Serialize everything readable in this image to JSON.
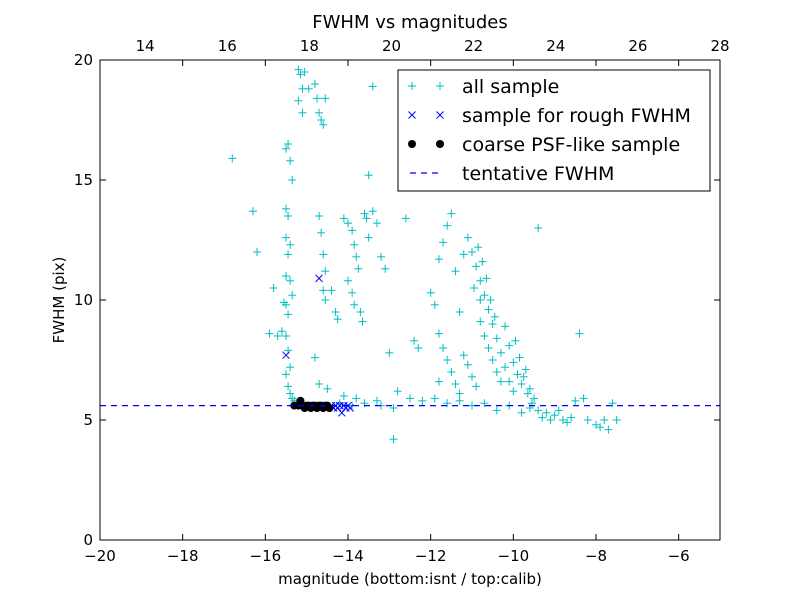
{
  "chart_data": {
    "type": "scatter",
    "title": "FWHM vs magnitudes",
    "xlabel": "magnitude (bottom:isnt / top:calib)",
    "ylabel": "FWHM (pix)",
    "xlim": [
      -20,
      -5
    ],
    "ylim": [
      0,
      20
    ],
    "xticks": [
      -20,
      -18,
      -16,
      -14,
      -12,
      -10,
      -8,
      -6
    ],
    "yticks": [
      0,
      5,
      10,
      15,
      20
    ],
    "top_xlim": [
      12.9,
      28
    ],
    "top_xticks": [
      14,
      16,
      18,
      20,
      22,
      24,
      26,
      28
    ],
    "legend_position": "top-right",
    "tentative_fwhm": 5.6,
    "series": [
      {
        "name": "all sample",
        "marker": "plus",
        "color": "#00bfbf",
        "points": [
          [
            -16.8,
            15.9
          ],
          [
            -16.3,
            13.7
          ],
          [
            -16.2,
            12.0
          ],
          [
            -15.8,
            10.5
          ],
          [
            -15.9,
            8.6
          ],
          [
            -15.7,
            8.5
          ],
          [
            -15.6,
            8.7
          ],
          [
            -15.55,
            9.9
          ],
          [
            -15.5,
            16.3
          ],
          [
            -15.45,
            16.5
          ],
          [
            -15.4,
            15.8
          ],
          [
            -15.35,
            15.0
          ],
          [
            -15.5,
            13.8
          ],
          [
            -15.45,
            13.5
          ],
          [
            -15.5,
            12.6
          ],
          [
            -15.4,
            12.3
          ],
          [
            -15.45,
            11.9
          ],
          [
            -15.5,
            11.0
          ],
          [
            -15.4,
            10.8
          ],
          [
            -15.35,
            10.2
          ],
          [
            -15.5,
            9.8
          ],
          [
            -15.45,
            9.4
          ],
          [
            -15.5,
            8.5
          ],
          [
            -15.45,
            7.9
          ],
          [
            -15.4,
            7.2
          ],
          [
            -15.5,
            6.9
          ],
          [
            -15.45,
            6.4
          ],
          [
            -15.4,
            6.1
          ],
          [
            -15.35,
            5.9
          ],
          [
            -15.3,
            5.8
          ],
          [
            -15.2,
            19.6
          ],
          [
            -15.15,
            19.4
          ],
          [
            -15.05,
            19.5
          ],
          [
            -15.1,
            18.8
          ],
          [
            -15.2,
            18.3
          ],
          [
            -15.1,
            17.8
          ],
          [
            -14.95,
            18.8
          ],
          [
            -14.8,
            19.0
          ],
          [
            -14.75,
            18.4
          ],
          [
            -14.7,
            17.8
          ],
          [
            -14.65,
            17.5
          ],
          [
            -14.6,
            17.3
          ],
          [
            -14.55,
            18.4
          ],
          [
            -14.7,
            13.5
          ],
          [
            -14.65,
            12.8
          ],
          [
            -14.6,
            11.9
          ],
          [
            -14.55,
            11.2
          ],
          [
            -14.6,
            10.4
          ],
          [
            -14.55,
            10.0
          ],
          [
            -14.4,
            10.4
          ],
          [
            -14.3,
            9.5
          ],
          [
            -14.25,
            9.2
          ],
          [
            -14.1,
            13.4
          ],
          [
            -14.0,
            13.2
          ],
          [
            -13.9,
            12.9
          ],
          [
            -13.85,
            12.3
          ],
          [
            -13.8,
            11.8
          ],
          [
            -13.75,
            11.3
          ],
          [
            -14.0,
            10.8
          ],
          [
            -13.9,
            10.3
          ],
          [
            -13.85,
            9.8
          ],
          [
            -13.7,
            9.5
          ],
          [
            -13.65,
            9.1
          ],
          [
            -13.6,
            13.6
          ],
          [
            -13.55,
            13.4
          ],
          [
            -13.5,
            12.6
          ],
          [
            -13.4,
            13.7
          ],
          [
            -13.3,
            13.2
          ],
          [
            -13.2,
            11.8
          ],
          [
            -13.1,
            11.3
          ],
          [
            -13.4,
            18.9
          ],
          [
            -13.0,
            7.8
          ],
          [
            -12.9,
            4.2
          ],
          [
            -12.6,
            13.4
          ],
          [
            -12.4,
            8.3
          ],
          [
            -12.0,
            10.3
          ],
          [
            -11.9,
            9.8
          ],
          [
            -11.8,
            11.7
          ],
          [
            -11.7,
            12.4
          ],
          [
            -11.6,
            13.1
          ],
          [
            -11.5,
            13.6
          ],
          [
            -11.4,
            11.2
          ],
          [
            -11.3,
            9.5
          ],
          [
            -11.2,
            11.9
          ],
          [
            -11.1,
            12.6
          ],
          [
            -11.0,
            12.0
          ],
          [
            -10.9,
            11.4
          ],
          [
            -10.8,
            10.8
          ],
          [
            -10.7,
            10.2
          ],
          [
            -10.6,
            9.6
          ],
          [
            -10.5,
            9.0
          ],
          [
            -10.4,
            8.4
          ],
          [
            -10.3,
            7.8
          ],
          [
            -10.2,
            7.2
          ],
          [
            -10.1,
            6.6
          ],
          [
            -10.0,
            6.2
          ],
          [
            -11.8,
            8.6
          ],
          [
            -11.7,
            8.0
          ],
          [
            -11.6,
            7.5
          ],
          [
            -11.5,
            7.0
          ],
          [
            -11.4,
            6.5
          ],
          [
            -11.3,
            6.1
          ],
          [
            -11.2,
            7.7
          ],
          [
            -11.1,
            7.3
          ],
          [
            -11.0,
            6.8
          ],
          [
            -10.9,
            6.4
          ],
          [
            -10.8,
            9.1
          ],
          [
            -10.7,
            8.5
          ],
          [
            -10.6,
            8.0
          ],
          [
            -10.5,
            7.5
          ],
          [
            -10.4,
            7.0
          ],
          [
            -10.3,
            6.6
          ],
          [
            -10.2,
            8.9
          ],
          [
            -10.1,
            8.1
          ],
          [
            -10.0,
            7.4
          ],
          [
            -9.9,
            6.9
          ],
          [
            -9.8,
            6.5
          ],
          [
            -9.7,
            7.1
          ],
          [
            -9.6,
            6.3
          ],
          [
            -9.5,
            5.9
          ],
          [
            -10.95,
            10.5
          ],
          [
            -10.85,
            12.2
          ],
          [
            -10.75,
            11.6
          ],
          [
            -10.65,
            10.9
          ],
          [
            -10.55,
            10.0
          ],
          [
            -10.45,
            9.3
          ],
          [
            -9.95,
            8.3
          ],
          [
            -9.85,
            7.6
          ],
          [
            -9.75,
            6.8
          ],
          [
            -9.65,
            6.1
          ],
          [
            -9.55,
            5.7
          ],
          [
            -9.4,
            5.4
          ],
          [
            -9.3,
            5.1
          ],
          [
            -9.2,
            5.3
          ],
          [
            -9.1,
            5.0
          ],
          [
            -9.0,
            5.2
          ],
          [
            -8.9,
            5.4
          ],
          [
            -8.8,
            5.0
          ],
          [
            -8.7,
            4.9
          ],
          [
            -8.6,
            5.1
          ],
          [
            -8.5,
            5.8
          ],
          [
            -8.3,
            5.9
          ],
          [
            -8.2,
            5.0
          ],
          [
            -8.0,
            4.8
          ],
          [
            -7.9,
            4.7
          ],
          [
            -7.8,
            5.0
          ],
          [
            -7.6,
            5.7
          ],
          [
            -7.7,
            4.6
          ],
          [
            -7.5,
            5.0
          ],
          [
            -8.4,
            8.6
          ],
          [
            -9.4,
            13.0
          ],
          [
            -10.8,
            10.0
          ],
          [
            -12.3,
            8.0
          ],
          [
            -11.8,
            6.6
          ],
          [
            -13.5,
            15.2
          ],
          [
            -14.8,
            7.6
          ],
          [
            -14.7,
            6.5
          ],
          [
            -14.5,
            6.3
          ],
          [
            -14.1,
            6.0
          ],
          [
            -13.8,
            5.9
          ],
          [
            -13.3,
            5.8
          ],
          [
            -12.8,
            6.2
          ],
          [
            -12.5,
            5.9
          ],
          [
            -12.2,
            5.8
          ],
          [
            -11.9,
            5.9
          ],
          [
            -11.6,
            5.7
          ],
          [
            -11.3,
            5.8
          ],
          [
            -11.0,
            5.6
          ],
          [
            -10.7,
            5.7
          ],
          [
            -10.4,
            5.4
          ],
          [
            -10.1,
            5.6
          ],
          [
            -9.8,
            5.3
          ],
          [
            -9.6,
            5.5
          ],
          [
            -12.9,
            5.5
          ],
          [
            -13.2,
            5.6
          ],
          [
            -13.6,
            5.7
          ],
          [
            -13.9,
            5.6
          ],
          [
            -14.2,
            5.7
          ],
          [
            -14.9,
            5.6
          ],
          [
            -15.25,
            5.7
          ]
        ]
      },
      {
        "name": "sample for rough FWHM",
        "marker": "x",
        "color": "#0000ff",
        "points": [
          [
            -15.5,
            7.7
          ],
          [
            -14.7,
            10.9
          ],
          [
            -14.3,
            5.6
          ],
          [
            -14.25,
            5.5
          ],
          [
            -14.2,
            5.6
          ],
          [
            -14.15,
            5.3
          ],
          [
            -14.1,
            5.6
          ],
          [
            -14.05,
            5.5
          ],
          [
            -14.0,
            5.6
          ],
          [
            -13.95,
            5.5
          ],
          [
            -14.4,
            5.6
          ],
          [
            -14.35,
            5.5
          ]
        ]
      },
      {
        "name": "coarse PSF-like sample",
        "marker": "circle",
        "color": "#000000",
        "points": [
          [
            -15.3,
            5.6
          ],
          [
            -15.2,
            5.6
          ],
          [
            -15.15,
            5.8
          ],
          [
            -15.1,
            5.6
          ],
          [
            -15.05,
            5.5
          ],
          [
            -15.0,
            5.6
          ],
          [
            -14.95,
            5.6
          ],
          [
            -14.9,
            5.5
          ],
          [
            -14.85,
            5.6
          ],
          [
            -14.8,
            5.6
          ],
          [
            -14.75,
            5.5
          ],
          [
            -14.7,
            5.6
          ],
          [
            -14.65,
            5.6
          ],
          [
            -14.6,
            5.5
          ],
          [
            -14.55,
            5.6
          ],
          [
            -14.5,
            5.6
          ],
          [
            -14.45,
            5.5
          ]
        ]
      },
      {
        "name": "tentative FWHM",
        "marker": "dashed-line",
        "color": "#0000ff",
        "points": []
      }
    ]
  }
}
